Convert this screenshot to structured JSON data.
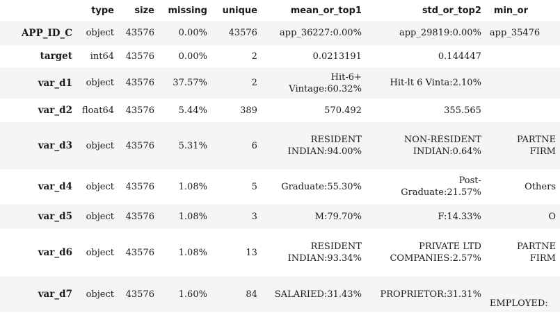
{
  "columns": [
    "",
    "type",
    "size",
    "missing",
    "unique",
    "mean_or_top1",
    "std_or_top2",
    "min_or"
  ],
  "rows": [
    {
      "index": "APP_ID_C",
      "type": "object",
      "size": "43576",
      "missing": "0.00%",
      "unique": "43576",
      "top1": "app_36227:0.00%",
      "top2": "app_29819:0.00%",
      "min": "app_35476"
    },
    {
      "index": "target",
      "type": "int64",
      "size": "43576",
      "missing": "0.00%",
      "unique": "2",
      "top1": "0.0213191",
      "top2": "0.144447",
      "min": ""
    },
    {
      "index": "var_d1",
      "type": "object",
      "size": "43576",
      "missing": "37.57%",
      "unique": "2",
      "top1_a": "Hit-6+",
      "top1_b": "Vintage:60.32%",
      "top2": "Hit-lt 6 Vinta:2.10%",
      "min": ""
    },
    {
      "index": "var_d2",
      "type": "float64",
      "size": "43576",
      "missing": "5.44%",
      "unique": "389",
      "top1": "570.492",
      "top2": "355.565",
      "min": ""
    },
    {
      "index": "var_d3",
      "type": "object",
      "size": "43576",
      "missing": "5.31%",
      "unique": "6",
      "top1_a": "RESIDENT",
      "top1_b": "INDIAN:94.00%",
      "top2_a": "NON-RESIDENT",
      "top2_b": "INDIAN:0.64%",
      "min_a": "PARTNE",
      "min_b": "FIRM"
    },
    {
      "index": "var_d4",
      "type": "object",
      "size": "43576",
      "missing": "1.08%",
      "unique": "5",
      "top1": "Graduate:55.30%",
      "top2_a": "Post-",
      "top2_b": "Graduate:21.57%",
      "min": "Others"
    },
    {
      "index": "var_d5",
      "type": "object",
      "size": "43576",
      "missing": "1.08%",
      "unique": "3",
      "top1": "M:79.70%",
      "top2": "F:14.33%",
      "min": "O"
    },
    {
      "index": "var_d6",
      "type": "object",
      "size": "43576",
      "missing": "1.08%",
      "unique": "13",
      "top1_a": "RESIDENT",
      "top1_b": "INDIAN:93.34%",
      "top2_a": "PRIVATE LTD",
      "top2_b": "COMPANIES:2.57%",
      "min_a": "PARTNE",
      "min_b": "FIRM"
    },
    {
      "index": "var_d7",
      "type": "object",
      "size": "43576",
      "missing": "1.60%",
      "unique": "84",
      "top1": "SALARIED:31.43%",
      "top2": "PROPRIETOR:31.31%",
      "min": "EMPLOYED:"
    }
  ]
}
